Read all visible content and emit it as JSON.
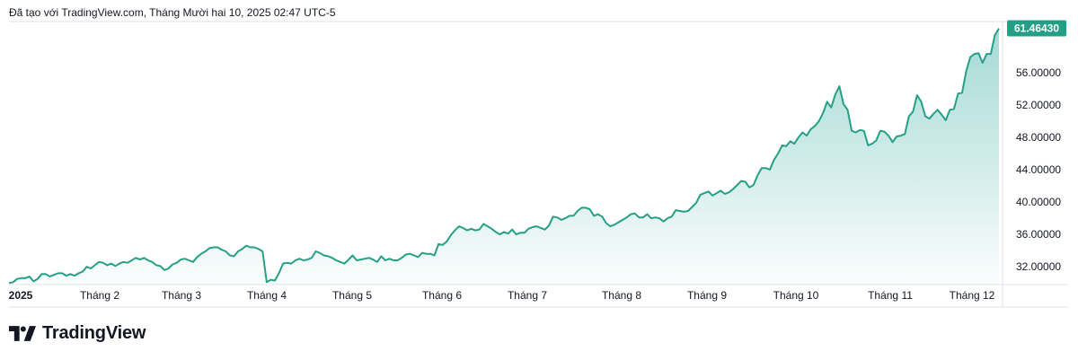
{
  "caption": "Đã tạo với TradingView.com, Tháng Mười hai 10, 2025 02:47 UTC-5",
  "brand": {
    "name": "TradingView",
    "logo_icon": "tradingview-logo-icon"
  },
  "colors": {
    "line": "#26a085",
    "fill": "#26a69a",
    "price_badge": "#22a086",
    "axis_text": "#131722",
    "border": "#e0e3eb"
  },
  "chart_data": {
    "type": "area",
    "title": "",
    "ylim": [
      29.8,
      62.3
    ],
    "y_ticks": [
      32,
      36,
      40,
      44,
      48,
      52,
      56
    ],
    "y_tick_labels": [
      "32.00000",
      "36.00000",
      "40.00000",
      "44.00000",
      "48.00000",
      "52.00000",
      "56.00000"
    ],
    "x_tick_labels": [
      "2025",
      "Tháng 2",
      "Tháng 3",
      "Tháng 4",
      "Tháng 5",
      "Tháng 6",
      "Tháng 7",
      "Tháng 8",
      "Tháng 9",
      "Tháng 10",
      "Tháng 11",
      "Tháng 12"
    ],
    "last_value": 61.4643,
    "last_value_label": "61.46430",
    "grid": false,
    "series": [
      {
        "values": [
          30.0,
          30.1,
          30.5,
          30.6,
          30.6,
          30.8,
          30.2,
          30.5,
          31.1,
          31.1,
          30.8,
          31.0,
          31.2,
          31.2,
          30.9,
          31.1,
          30.9,
          31.2,
          31.4,
          32.0,
          31.8,
          32.2,
          32.6,
          32.5,
          32.2,
          32.4,
          32.1,
          32.4,
          32.6,
          32.5,
          32.8,
          33.1,
          32.9,
          33.1,
          32.8,
          32.6,
          32.2,
          32.1,
          31.6,
          31.8,
          32.3,
          32.5,
          32.9,
          33.0,
          32.8,
          32.6,
          33.2,
          33.6,
          33.9,
          34.3,
          34.4,
          34.4,
          34.1,
          33.9,
          33.4,
          33.3,
          33.9,
          34.2,
          34.6,
          34.4,
          34.4,
          34.2,
          33.9,
          30.1,
          30.4,
          30.3,
          31.2,
          32.4,
          32.5,
          32.4,
          32.8,
          33.0,
          32.8,
          32.9,
          33.1,
          33.9,
          33.7,
          33.4,
          33.3,
          33.1,
          32.8,
          32.6,
          32.4,
          32.9,
          33.4,
          32.8,
          32.9,
          33.0,
          33.1,
          32.9,
          32.6,
          33.3,
          32.8,
          33.0,
          32.8,
          32.8,
          33.1,
          33.5,
          33.6,
          33.4,
          33.2,
          33.7,
          33.6,
          33.6,
          33.4,
          34.8,
          34.7,
          35.1,
          35.9,
          36.5,
          37.0,
          36.8,
          36.5,
          36.7,
          36.5,
          36.6,
          37.3,
          37.0,
          36.7,
          36.3,
          36.0,
          36.3,
          36.1,
          36.6,
          36.0,
          36.2,
          36.2,
          36.7,
          36.9,
          37.0,
          36.8,
          36.6,
          37.1,
          38.2,
          38.1,
          37.8,
          38.0,
          38.3,
          38.3,
          38.9,
          39.3,
          39.3,
          39.1,
          38.3,
          38.5,
          38.2,
          37.4,
          37.0,
          37.2,
          37.5,
          37.8,
          38.1,
          38.5,
          38.6,
          38.1,
          38.1,
          38.5,
          38.0,
          38.1,
          38.0,
          37.6,
          38.0,
          38.2,
          39.0,
          38.9,
          38.8,
          38.9,
          39.4,
          39.9,
          40.9,
          41.1,
          41.3,
          40.8,
          41.1,
          41.4,
          41.0,
          41.2,
          41.6,
          42.1,
          42.6,
          42.5,
          41.8,
          42.1,
          43.3,
          44.2,
          44.2,
          44.0,
          45.2,
          46.0,
          47.0,
          46.9,
          47.5,
          47.2,
          48.0,
          48.6,
          48.2,
          49.0,
          49.4,
          50.0,
          51.0,
          52.4,
          51.7,
          53.3,
          54.3,
          52.1,
          51.4,
          48.8,
          48.6,
          48.9,
          48.8,
          47.0,
          47.2,
          47.6,
          48.8,
          48.7,
          48.2,
          47.4,
          48.1,
          48.2,
          48.4,
          50.6,
          51.2,
          53.2,
          52.4,
          50.6,
          50.3,
          50.9,
          51.4,
          50.8,
          50.1,
          51.4,
          51.5,
          53.4,
          53.5,
          56.2,
          57.9,
          58.3,
          58.4,
          57.2,
          58.3,
          58.3,
          60.6,
          61.46
        ]
      }
    ]
  }
}
